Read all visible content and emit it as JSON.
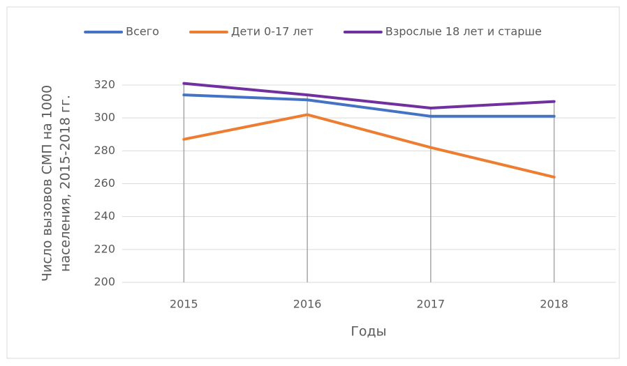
{
  "chart_data": {
    "type": "line",
    "categories": [
      "2015",
      "2016",
      "2017",
      "2018"
    ],
    "series": [
      {
        "name": "Всего",
        "color": "#4472c4",
        "values": [
          314,
          311,
          301,
          301
        ]
      },
      {
        "name": "Дети 0-17 лет",
        "color": "#ed7d31",
        "values": [
          287,
          302,
          282,
          264
        ]
      },
      {
        "name": "Взрослые 18 лет и старше",
        "color": "#7030a0",
        "values": [
          321,
          314,
          306,
          310
        ]
      }
    ],
    "xlabel": "Годы",
    "ylabel": [
      "Число вызовов СМП на 1000",
      "населения, 2015-2018 гг."
    ],
    "ylim": [
      200,
      320
    ],
    "yticks": [
      200,
      220,
      240,
      260,
      280,
      300,
      320
    ],
    "grid": true,
    "drop_lines": true,
    "legend": "top"
  }
}
